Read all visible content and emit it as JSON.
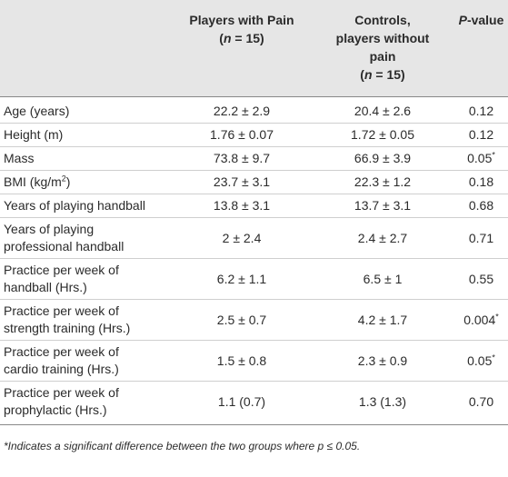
{
  "table": {
    "header": [
      [],
      [
        [
          {
            "text": "Players with Pain"
          }
        ],
        [
          {
            "text": "("
          },
          {
            "text": "n",
            "italic": true
          },
          {
            "text": " = 15)"
          }
        ]
      ],
      [
        [
          {
            "text": "Controls,"
          }
        ],
        [
          {
            "text": "players without"
          }
        ],
        [
          {
            "text": "pain"
          }
        ],
        [
          {
            "text": "("
          },
          {
            "text": "n",
            "italic": true
          },
          {
            "text": " = 15)"
          }
        ]
      ],
      [
        [
          {
            "text": "P",
            "italic": true
          },
          {
            "text": "-value"
          }
        ]
      ]
    ],
    "rows": [
      [
        [
          [
            {
              "text": "Age (years)"
            }
          ]
        ],
        [
          [
            {
              "text": "22.2 ± 2.9"
            }
          ]
        ],
        [
          [
            {
              "text": "20.4 ± 2.6"
            }
          ]
        ],
        [
          [
            {
              "text": "0.12"
            }
          ]
        ]
      ],
      [
        [
          [
            {
              "text": "Height (m)"
            }
          ]
        ],
        [
          [
            {
              "text": "1.76 ± 0.07"
            }
          ]
        ],
        [
          [
            {
              "text": "1.72 ± 0.05"
            }
          ]
        ],
        [
          [
            {
              "text": "0.12"
            }
          ]
        ]
      ],
      [
        [
          [
            {
              "text": "Mass"
            }
          ]
        ],
        [
          [
            {
              "text": "73.8 ± 9.7"
            }
          ]
        ],
        [
          [
            {
              "text": "66.9 ± 3.9"
            }
          ]
        ],
        [
          [
            {
              "text": "0.05"
            },
            {
              "text": "*",
              "sup": true
            }
          ]
        ]
      ],
      [
        [
          [
            {
              "text": "BMI (kg/m"
            },
            {
              "text": "2",
              "sup": true
            },
            {
              "text": ")"
            }
          ]
        ],
        [
          [
            {
              "text": "23.7 ± 3.1"
            }
          ]
        ],
        [
          [
            {
              "text": "22.3 ± 1.2"
            }
          ]
        ],
        [
          [
            {
              "text": "0.18"
            }
          ]
        ]
      ],
      [
        [
          [
            {
              "text": "Years of playing handball"
            }
          ]
        ],
        [
          [
            {
              "text": "13.8 ± 3.1"
            }
          ]
        ],
        [
          [
            {
              "text": "13.7 ± 3.1"
            }
          ]
        ],
        [
          [
            {
              "text": "0.68"
            }
          ]
        ]
      ],
      [
        [
          [
            {
              "text": "Years of playing"
            }
          ],
          [
            {
              "text": "professional handball"
            }
          ]
        ],
        [
          [
            {
              "text": "2 ± 2.4"
            }
          ]
        ],
        [
          [
            {
              "text": "2.4 ± 2.7"
            }
          ]
        ],
        [
          [
            {
              "text": "0.71"
            }
          ]
        ]
      ],
      [
        [
          [
            {
              "text": "Practice per week of"
            }
          ],
          [
            {
              "text": "handball (Hrs.)"
            }
          ]
        ],
        [
          [
            {
              "text": "6.2 ± 1.1"
            }
          ]
        ],
        [
          [
            {
              "text": "6.5 ± 1"
            }
          ]
        ],
        [
          [
            {
              "text": "0.55"
            }
          ]
        ]
      ],
      [
        [
          [
            {
              "text": "Practice per week of"
            }
          ],
          [
            {
              "text": "strength training (Hrs.)"
            }
          ]
        ],
        [
          [
            {
              "text": "2.5 ± 0.7"
            }
          ]
        ],
        [
          [
            {
              "text": "4.2 ± 1.7"
            }
          ]
        ],
        [
          [
            {
              "text": "0.004"
            },
            {
              "text": "*",
              "sup": true
            }
          ]
        ]
      ],
      [
        [
          [
            {
              "text": "Practice per week of"
            }
          ],
          [
            {
              "text": "cardio training (Hrs.)"
            }
          ]
        ],
        [
          [
            {
              "text": "1.5 ± 0.8"
            }
          ]
        ],
        [
          [
            {
              "text": "2.3 ± 0.9"
            }
          ]
        ],
        [
          [
            {
              "text": "0.05"
            },
            {
              "text": "*",
              "sup": true
            }
          ]
        ]
      ],
      [
        [
          [
            {
              "text": "Practice per week of"
            }
          ],
          [
            {
              "text": "prophylactic (Hrs.)"
            }
          ]
        ],
        [
          [
            {
              "text": "1.1 (0.7)"
            }
          ]
        ],
        [
          [
            {
              "text": "1.3 (1.3)"
            }
          ]
        ],
        [
          [
            {
              "text": "0.70"
            }
          ]
        ]
      ]
    ],
    "footnote": "*Indicates a significant difference between the two groups where p ≤ 0.05."
  }
}
